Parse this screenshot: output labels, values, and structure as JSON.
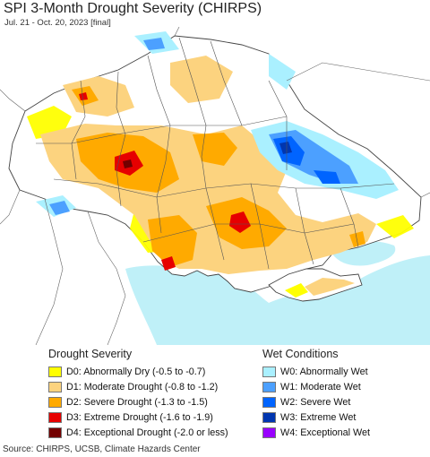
{
  "header": {
    "title": "SPI 3-Month Drought Severity (CHIRPS)",
    "subtitle": "Jul. 21 - Oct. 20, 2023 [final]"
  },
  "legend": {
    "drought": {
      "title": "Drought Severity",
      "items": [
        {
          "label": "D0: Abnormally Dry (-0.5 to -0.7)",
          "color": "#ffff00"
        },
        {
          "label": "D1: Moderate Drought (-0.8 to -1.2)",
          "color": "#fcd37f"
        },
        {
          "label": "D2: Severe Drought (-1.3 to -1.5)",
          "color": "#ffaa00"
        },
        {
          "label": "D3: Extreme Drought (-1.6 to -1.9)",
          "color": "#e60000"
        },
        {
          "label": "D4: Exceptional Drought (-2.0 or less)",
          "color": "#730000"
        }
      ]
    },
    "wet": {
      "title": "Wet Conditions",
      "items": [
        {
          "label": "W0: Abnormally Wet",
          "color": "#aaf0ff"
        },
        {
          "label": "W1: Moderate Wet",
          "color": "#4ca0ff"
        },
        {
          "label": "W2: Severe Wet",
          "color": "#0064ff"
        },
        {
          "label": "W3: Extreme Wet",
          "color": "#0036b0"
        },
        {
          "label": "W4: Exceptional Wet",
          "color": "#9900ff"
        }
      ]
    }
  },
  "footer": {
    "source": "Source: CHIRPS, UCSB, Climate Hazards Center"
  }
}
